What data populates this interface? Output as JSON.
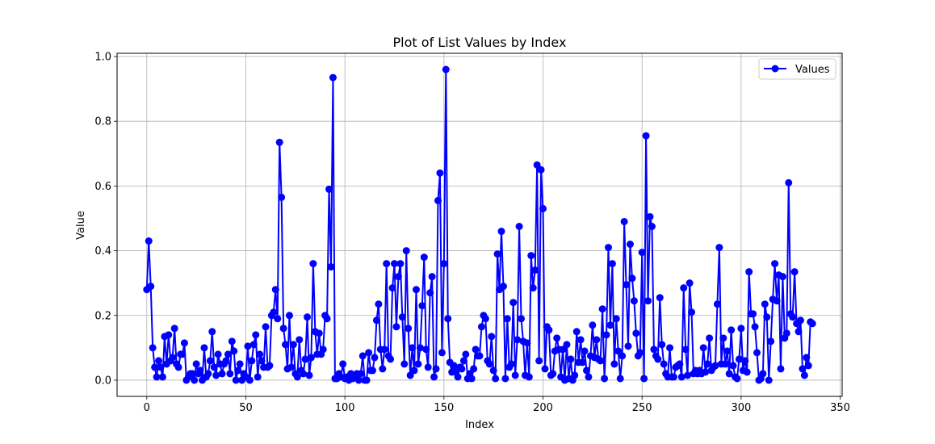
{
  "chart_data": {
    "type": "line",
    "title": "Plot of List Values by Index",
    "xlabel": "Index",
    "ylabel": "Value",
    "xlim": [
      -15,
      351
    ],
    "ylim": [
      -0.05,
      1.01
    ],
    "xticks": [
      0,
      50,
      100,
      150,
      200,
      250,
      300,
      350
    ],
    "xtick_labels": [
      "0",
      "50",
      "100",
      "150",
      "200",
      "250",
      "300",
      "350"
    ],
    "yticks": [
      0.0,
      0.2,
      0.4,
      0.6,
      0.8,
      1.0
    ],
    "ytick_labels": [
      "0.0",
      "0.2",
      "0.4",
      "0.6",
      "0.8",
      "1.0"
    ],
    "grid": true,
    "legend_position": "top-right",
    "series": [
      {
        "name": "Values",
        "color": "#0000ff",
        "marker": "circle",
        "values": [
          0.28,
          0.43,
          0.29,
          0.1,
          0.04,
          0.01,
          0.06,
          0.04,
          0.01,
          0.135,
          0.05,
          0.14,
          0.06,
          0.07,
          0.16,
          0.05,
          0.04,
          0.08,
          0.08,
          0.115,
          0.0,
          0.01,
          0.02,
          0.02,
          0.0,
          0.05,
          0.02,
          0.03,
          0.0,
          0.1,
          0.01,
          0.02,
          0.06,
          0.15,
          0.04,
          0.015,
          0.08,
          0.05,
          0.02,
          0.05,
          0.06,
          0.08,
          0.02,
          0.12,
          0.09,
          0.0,
          0.03,
          0.05,
          0.0,
          0.02,
          0.01,
          0.105,
          0.0,
          0.06,
          0.11,
          0.14,
          0.01,
          0.08,
          0.06,
          0.04,
          0.165,
          0.04,
          0.045,
          0.2,
          0.21,
          0.28,
          0.19,
          0.735,
          0.565,
          0.16,
          0.11,
          0.035,
          0.2,
          0.04,
          0.11,
          0.02,
          0.01,
          0.125,
          0.03,
          0.02,
          0.065,
          0.195,
          0.015,
          0.07,
          0.36,
          0.15,
          0.08,
          0.145,
          0.08,
          0.095,
          0.2,
          0.19,
          0.59,
          0.35,
          0.935,
          0.005,
          0.005,
          0.02,
          0.01,
          0.05,
          0.005,
          0.01,
          0.0,
          0.02,
          0.005,
          0.01,
          0.02,
          0.0,
          0.02,
          0.075,
          0.0,
          0.0,
          0.085,
          0.03,
          0.03,
          0.07,
          0.185,
          0.235,
          0.095,
          0.035,
          0.095,
          0.36,
          0.075,
          0.065,
          0.285,
          0.36,
          0.165,
          0.32,
          0.36,
          0.195,
          0.05,
          0.4,
          0.16,
          0.015,
          0.1,
          0.03,
          0.28,
          0.05,
          0.1,
          0.23,
          0.38,
          0.095,
          0.04,
          0.27,
          0.32,
          0.01,
          0.035,
          0.555,
          0.64,
          0.085,
          0.36,
          0.96,
          0.19,
          0.055,
          0.025,
          0.045,
          0.025,
          0.01,
          0.04,
          0.035,
          0.06,
          0.08,
          0.005,
          0.02,
          0.005,
          0.035,
          0.095,
          0.075,
          0.075,
          0.165,
          0.2,
          0.19,
          0.06,
          0.05,
          0.135,
          0.03,
          0.005,
          0.39,
          0.28,
          0.46,
          0.29,
          0.005,
          0.19,
          0.04,
          0.05,
          0.24,
          0.015,
          0.125,
          0.475,
          0.19,
          0.12,
          0.015,
          0.115,
          0.01,
          0.385,
          0.285,
          0.34,
          0.665,
          0.06,
          0.65,
          0.53,
          0.035,
          0.165,
          0.155,
          0.015,
          0.02,
          0.09,
          0.13,
          0.095,
          0.01,
          0.095,
          0.0,
          0.11,
          0.005,
          0.065,
          0.0,
          0.015,
          0.15,
          0.055,
          0.125,
          0.055,
          0.09,
          0.03,
          0.01,
          0.075,
          0.17,
          0.07,
          0.125,
          0.065,
          0.06,
          0.22,
          0.005,
          0.14,
          0.41,
          0.17,
          0.36,
          0.05,
          0.19,
          0.09,
          0.005,
          0.075,
          0.49,
          0.295,
          0.105,
          0.42,
          0.315,
          0.245,
          0.145,
          0.075,
          0.085,
          0.395,
          0.005,
          0.755,
          0.245,
          0.505,
          0.475,
          0.095,
          0.075,
          0.065,
          0.255,
          0.11,
          0.05,
          0.02,
          0.01,
          0.1,
          0.01,
          0.01,
          0.04,
          0.045,
          0.05,
          0.01,
          0.285,
          0.095,
          0.015,
          0.3,
          0.21,
          0.02,
          0.03,
          0.02,
          0.03,
          0.02,
          0.1,
          0.025,
          0.05,
          0.13,
          0.03,
          0.04,
          0.045,
          0.235,
          0.41,
          0.05,
          0.13,
          0.05,
          0.09,
          0.02,
          0.155,
          0.045,
          0.01,
          0.005,
          0.065,
          0.16,
          0.03,
          0.06,
          0.025,
          0.335,
          0.205,
          0.205,
          0.165,
          0.085,
          0.0,
          0.005,
          0.02,
          0.235,
          0.195,
          0.0,
          0.12,
          0.25,
          0.36,
          0.245,
          0.325,
          0.035,
          0.32,
          0.13,
          0.145,
          0.61,
          0.205,
          0.195,
          0.335,
          0.175,
          0.15,
          0.185,
          0.035,
          0.015,
          0.07,
          0.045,
          0.18,
          0.175
        ]
      }
    ]
  }
}
